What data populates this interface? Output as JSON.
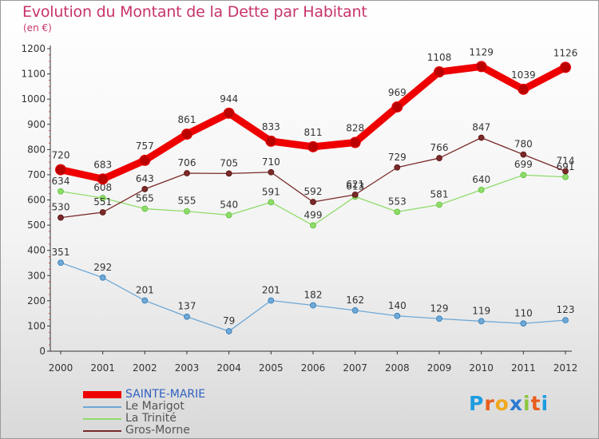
{
  "title": "Evolution du Montant de la Dette par Habitant",
  "subtitle": "(en €)",
  "logo": {
    "text": "Proxiti",
    "letters": [
      "P",
      "r",
      "o",
      "x",
      "i",
      "t",
      "i"
    ],
    "colors": [
      "#1e9de0",
      "#e85d1d",
      "#f2a81d",
      "#2d7bd1",
      "#8cc63f",
      "#e85d1d",
      "#1e9de0"
    ]
  },
  "chart_data": {
    "type": "line",
    "x": [
      "2000",
      "2001",
      "2002",
      "2003",
      "2004",
      "2005",
      "2006",
      "2007",
      "2008",
      "2009",
      "2010",
      "2011",
      "2012"
    ],
    "ylim": [
      0,
      1200
    ],
    "yticks": [
      0,
      100,
      200,
      300,
      400,
      500,
      600,
      700,
      800,
      900,
      1000,
      1100,
      1200
    ],
    "grid": false,
    "legend_position": "bottom-left",
    "series": [
      {
        "name": "SAINTE-MARIE",
        "color": "#ee0000",
        "values": [
          720,
          683,
          757,
          861,
          944,
          833,
          811,
          828,
          969,
          1108,
          1129,
          1039,
          1126
        ]
      },
      {
        "name": "Le Marigot",
        "color": "#6fa8d6",
        "values": [
          351,
          292,
          201,
          137,
          79,
          201,
          182,
          162,
          140,
          129,
          119,
          110,
          123
        ]
      },
      {
        "name": "La Trinité",
        "color": "#8fdc6a",
        "values": [
          634,
          608,
          565,
          555,
          540,
          591,
          499,
          613,
          553,
          581,
          640,
          699,
          691
        ]
      },
      {
        "name": "Gros-Morne",
        "color": "#7a2a2a",
        "values": [
          530,
          551,
          643,
          706,
          705,
          710,
          592,
          621,
          729,
          766,
          847,
          780,
          714
        ]
      }
    ]
  }
}
